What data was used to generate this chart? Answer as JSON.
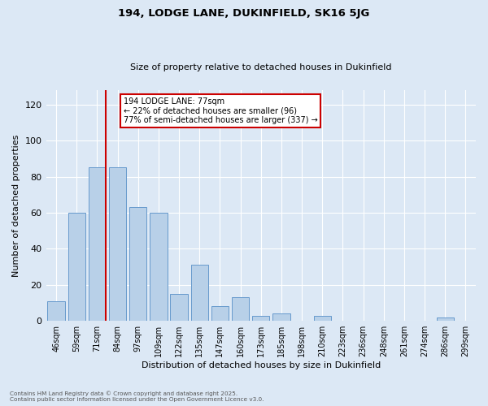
{
  "title1": "194, LODGE LANE, DUKINFIELD, SK16 5JG",
  "title2": "Size of property relative to detached houses in Dukinfield",
  "xlabel": "Distribution of detached houses by size in Dukinfield",
  "ylabel": "Number of detached properties",
  "categories": [
    "46sqm",
    "59sqm",
    "71sqm",
    "84sqm",
    "97sqm",
    "109sqm",
    "122sqm",
    "135sqm",
    "147sqm",
    "160sqm",
    "173sqm",
    "185sqm",
    "198sqm",
    "210sqm",
    "223sqm",
    "236sqm",
    "248sqm",
    "261sqm",
    "274sqm",
    "286sqm",
    "299sqm"
  ],
  "values": [
    11,
    60,
    85,
    85,
    63,
    60,
    15,
    31,
    8,
    13,
    3,
    4,
    0,
    3,
    0,
    0,
    0,
    0,
    0,
    2,
    0
  ],
  "bar_color": "#b8d0e8",
  "bar_edge_color": "#6699cc",
  "vline_index": 2,
  "vline_color": "#cc0000",
  "annotation_text": "194 LODGE LANE: 77sqm\n← 22% of detached houses are smaller (96)\n77% of semi-detached houses are larger (337) →",
  "annotation_box_color": "#ffffff",
  "annotation_box_edge": "#cc0000",
  "ylim": [
    0,
    128
  ],
  "yticks": [
    0,
    20,
    40,
    60,
    80,
    100,
    120
  ],
  "background_color": "#dce8f5",
  "grid_color": "#ffffff",
  "footer": "Contains HM Land Registry data © Crown copyright and database right 2025.\nContains public sector information licensed under the Open Government Licence v3.0."
}
